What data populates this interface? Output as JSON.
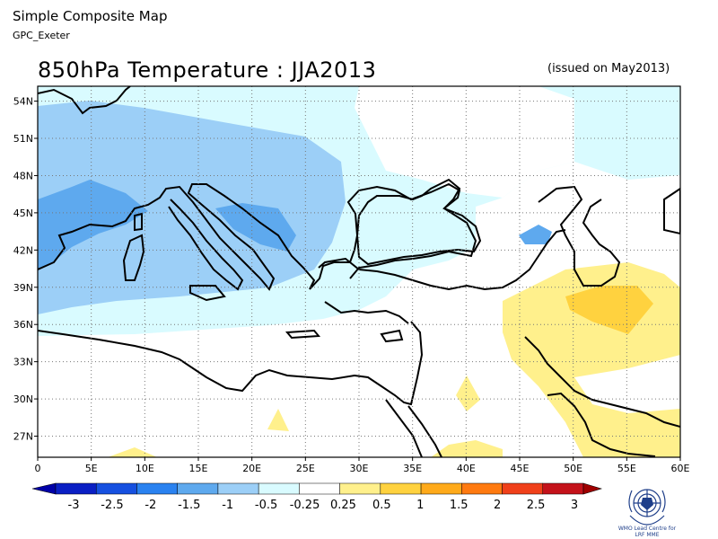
{
  "header": {
    "title": "Simple Composite Map",
    "subtitle": "GPC_Exeter"
  },
  "map": {
    "title": "850hPa Temperature : JJA2013",
    "issued": "(issued on May2013)",
    "lon_labels": [
      "0",
      "5E",
      "10E",
      "15E",
      "20E",
      "25E",
      "30E",
      "35E",
      "40E",
      "45E",
      "50E",
      "55E",
      "60E"
    ],
    "lat_labels": [
      "27N",
      "30N",
      "33N",
      "36N",
      "39N",
      "42N",
      "45N",
      "48N",
      "51N",
      "54N"
    ],
    "lon_range": [
      0,
      60
    ],
    "lat_range": [
      25.3,
      55.2
    ],
    "grid": "dotted",
    "region": "Europe / Mediterranean / Middle East"
  },
  "colorbar": {
    "labels": [
      "-3",
      "-2.5",
      "-2",
      "-1.5",
      "-1",
      "-0.5",
      "-0.25",
      "0.25",
      "0.5",
      "1",
      "1.5",
      "2",
      "2.5",
      "3"
    ],
    "colors": [
      "#0a1fc4",
      "#1650e0",
      "#2a82f0",
      "#5ea9ee",
      "#9ccff7",
      "#d9fbff",
      "#ffffff",
      "#fff08c",
      "#ffd23f",
      "#ffaa1a",
      "#ff7a10",
      "#f0401a",
      "#c4121a"
    ],
    "lowest_color": "#0000a8",
    "highest_color": "#a00000"
  },
  "logo": {
    "name": "wmo-emblem-icon",
    "caption_line1": "WMO Lead Centre for",
    "caption_line2": "LRF MME"
  }
}
